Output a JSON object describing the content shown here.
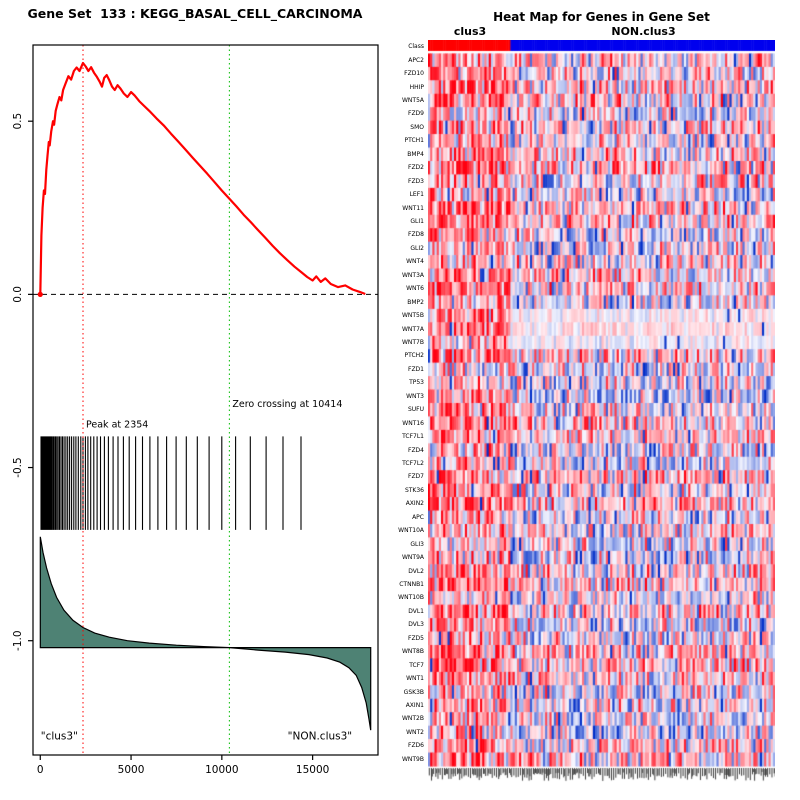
{
  "page": {
    "background": "#ffffff"
  },
  "chart_data": [
    {
      "type": "line",
      "title": "Gene Set  133 : KEGG_BASAL_CELL_CARCINOMA",
      "xlim": [
        -400,
        18600
      ],
      "ylim": [
        -1.33,
        0.72
      ],
      "x_ticks": [
        0,
        5000,
        10000,
        15000
      ],
      "y_ticks": [
        0.5,
        0.0,
        -0.5,
        -1.0
      ],
      "zero_line_y": 0,
      "es_curve": {
        "color": "#ff0000",
        "points": [
          [
            0,
            0
          ],
          [
            60,
            0.17
          ],
          [
            130,
            0.25
          ],
          [
            200,
            0.3
          ],
          [
            260,
            0.29
          ],
          [
            330,
            0.36
          ],
          [
            400,
            0.4
          ],
          [
            470,
            0.44
          ],
          [
            520,
            0.43
          ],
          [
            600,
            0.47
          ],
          [
            700,
            0.5
          ],
          [
            760,
            0.49
          ],
          [
            850,
            0.53
          ],
          [
            950,
            0.55
          ],
          [
            1060,
            0.57
          ],
          [
            1160,
            0.56
          ],
          [
            1260,
            0.59
          ],
          [
            1400,
            0.61
          ],
          [
            1550,
            0.63
          ],
          [
            1700,
            0.62
          ],
          [
            1850,
            0.645
          ],
          [
            2000,
            0.655
          ],
          [
            2160,
            0.645
          ],
          [
            2354,
            0.668
          ],
          [
            2500,
            0.658
          ],
          [
            2650,
            0.645
          ],
          [
            2800,
            0.656
          ],
          [
            2960,
            0.64
          ],
          [
            3120,
            0.628
          ],
          [
            3260,
            0.615
          ],
          [
            3400,
            0.6
          ],
          [
            3520,
            0.625
          ],
          [
            3660,
            0.633
          ],
          [
            3800,
            0.618
          ],
          [
            3950,
            0.6
          ],
          [
            4100,
            0.59
          ],
          [
            4260,
            0.604
          ],
          [
            4420,
            0.594
          ],
          [
            4600,
            0.58
          ],
          [
            4800,
            0.57
          ],
          [
            5000,
            0.584
          ],
          [
            5200,
            0.574
          ],
          [
            5450,
            0.558
          ],
          [
            5700,
            0.545
          ],
          [
            6000,
            0.53
          ],
          [
            6400,
            0.508
          ],
          [
            6800,
            0.488
          ],
          [
            7200,
            0.464
          ],
          [
            7600,
            0.441
          ],
          [
            8000,
            0.418
          ],
          [
            8400,
            0.394
          ],
          [
            8800,
            0.371
          ],
          [
            9200,
            0.348
          ],
          [
            9600,
            0.324
          ],
          [
            10000,
            0.3
          ],
          [
            10414,
            0.276
          ],
          [
            10800,
            0.254
          ],
          [
            11200,
            0.23
          ],
          [
            11600,
            0.208
          ],
          [
            12000,
            0.185
          ],
          [
            12400,
            0.163
          ],
          [
            12800,
            0.14
          ],
          [
            13200,
            0.119
          ],
          [
            13600,
            0.099
          ],
          [
            14000,
            0.08
          ],
          [
            14400,
            0.063
          ],
          [
            14700,
            0.05
          ],
          [
            15000,
            0.04
          ],
          [
            15200,
            0.052
          ],
          [
            15450,
            0.036
          ],
          [
            15700,
            0.046
          ],
          [
            16000,
            0.03
          ],
          [
            16400,
            0.021
          ],
          [
            16800,
            0.026
          ],
          [
            17200,
            0.014
          ],
          [
            17600,
            0.007
          ],
          [
            17900,
            0.001
          ]
        ]
      },
      "peak": {
        "x": 2354,
        "label": "Peak at 2354",
        "color": "#ff0000"
      },
      "zero_crossing": {
        "x": 10414,
        "label": "Zero crossing at 10414",
        "color": "#00bb00"
      },
      "hits": {
        "y_top": -0.41,
        "y_bottom": -0.68,
        "positions": [
          40,
          95,
          150,
          210,
          265,
          315,
          370,
          425,
          475,
          525,
          580,
          640,
          705,
          770,
          840,
          910,
          985,
          1060,
          1140,
          1225,
          1315,
          1410,
          1510,
          1615,
          1725,
          1845,
          1965,
          2095,
          2230,
          2354,
          2485,
          2625,
          2780,
          2950,
          3130,
          3320,
          3530,
          3755,
          4010,
          4280,
          4580,
          4900,
          5250,
          5630,
          6040,
          6480,
          6960,
          7480,
          8040,
          8650,
          9300,
          10000,
          10760,
          11570,
          12440,
          13370,
          14360
        ]
      },
      "metric": {
        "baseline": -1.02,
        "fill": "#4e8274",
        "outline": "#000000",
        "points": [
          [
            0,
            -0.7
          ],
          [
            150,
            -0.745
          ],
          [
            350,
            -0.79
          ],
          [
            600,
            -0.835
          ],
          [
            900,
            -0.875
          ],
          [
            1300,
            -0.912
          ],
          [
            1800,
            -0.941
          ],
          [
            2354,
            -0.962
          ],
          [
            3000,
            -0.978
          ],
          [
            3800,
            -0.99
          ],
          [
            4800,
            -1.0
          ],
          [
            6000,
            -1.007
          ],
          [
            7500,
            -1.013
          ],
          [
            9000,
            -1.017
          ],
          [
            10414,
            -1.02
          ],
          [
            12000,
            -1.027
          ],
          [
            13500,
            -1.033
          ],
          [
            14800,
            -1.04
          ],
          [
            15800,
            -1.05
          ],
          [
            16500,
            -1.062
          ],
          [
            17000,
            -1.078
          ],
          [
            17400,
            -1.1
          ],
          [
            17700,
            -1.135
          ],
          [
            17950,
            -1.18
          ],
          [
            18100,
            -1.225
          ],
          [
            18200,
            -1.258
          ]
        ]
      },
      "group_labels": {
        "left": "\"clus3\"",
        "right": "\"NON.clus3\"",
        "left_x": 1050,
        "right_x": 15400,
        "y": -1.285
      }
    },
    {
      "type": "heatmap",
      "title": "Heat Map for Genes in Gene Set",
      "class_row_label": "Class",
      "groups": [
        {
          "label": "clus3",
          "color": "#ff0000",
          "fraction": 0.24
        },
        {
          "label": "NON.clus3",
          "color": "#0000ee",
          "fraction": 0.76
        }
      ],
      "genes": [
        "APC2",
        "FZD10",
        "HHIP",
        "WNT5A",
        "FZD9",
        "SMO",
        "PTCH1",
        "BMP4",
        "FZD2",
        "FZD3",
        "LEF1",
        "WNT11",
        "GLI1",
        "FZD8",
        "GLI2",
        "WNT4",
        "WNT3A",
        "WNT6",
        "BMP2",
        "WNT5B",
        "WNT7A",
        "WNT7B",
        "PTCH2",
        "FZD1",
        "TP53",
        "WNT3",
        "SUFU",
        "WNT16",
        "TCF7L1",
        "FZD4",
        "TCF7L2",
        "FZD7",
        "STK36",
        "AXIN2",
        "APC",
        "WNT10A",
        "GLI3",
        "WNT9A",
        "DVL2",
        "CTNNB1",
        "WNT10B",
        "DVL1",
        "DVL3",
        "FZD5",
        "WNT8B",
        "TCF7",
        "WNT1",
        "GSK3B",
        "AXIN1",
        "WNT2B",
        "WNT2",
        "FZD6",
        "WNT9B"
      ],
      "columns": 160,
      "seed": 42,
      "palette": {
        "high": "#ff0000",
        "mid": "#ffffff",
        "low": "#0030c8"
      },
      "left_bias": 0.38,
      "right_bias": 0.04,
      "pale_rows": [
        "WNT5B",
        "WNT7A",
        "WNT7B"
      ]
    }
  ]
}
